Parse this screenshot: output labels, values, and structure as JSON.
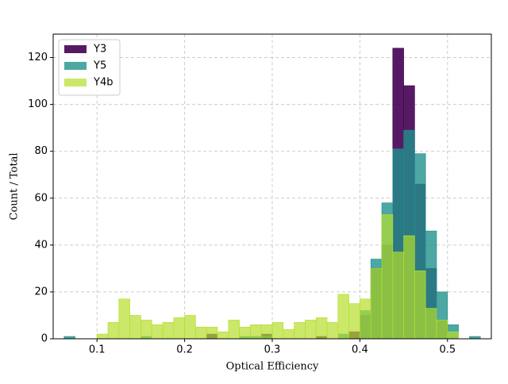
{
  "chart_data": {
    "type": "histogram",
    "xlabel": "Optical Efficiency",
    "ylabel": "Count / Total",
    "bins": [
      0.0625,
      0.075,
      0.0875,
      0.1,
      0.1125,
      0.125,
      0.1375,
      0.15,
      0.1625,
      0.175,
      0.1875,
      0.2,
      0.2125,
      0.225,
      0.2375,
      0.25,
      0.2625,
      0.275,
      0.2875,
      0.3,
      0.3125,
      0.325,
      0.3375,
      0.35,
      0.3625,
      0.375,
      0.3875,
      0.4,
      0.4125,
      0.425,
      0.4375,
      0.45,
      0.4625,
      0.475,
      0.4875,
      0.5,
      0.5125,
      0.525,
      0.5375
    ],
    "series": [
      {
        "name": "Y3",
        "color": "#440154",
        "values": [
          0,
          0,
          0,
          0,
          0,
          0,
          0,
          0,
          0,
          0,
          0,
          0,
          0,
          2,
          0,
          0,
          0,
          0,
          2,
          0,
          0,
          0,
          0,
          1,
          0,
          0,
          3,
          10,
          30,
          40,
          124,
          108,
          66,
          30,
          8,
          0,
          0,
          0
        ]
      },
      {
        "name": "Y5",
        "color": "#21918c",
        "values": [
          1,
          0,
          0,
          0,
          0,
          0,
          0,
          1,
          0,
          0,
          0,
          0,
          0,
          0,
          0,
          0,
          1,
          1,
          1,
          0,
          0,
          0,
          0,
          0,
          0,
          2,
          0,
          12,
          34,
          58,
          81,
          89,
          79,
          46,
          20,
          6,
          0,
          1
        ]
      },
      {
        "name": "Y4b",
        "color": "#b5de2b",
        "values": [
          0,
          0,
          0,
          2,
          7,
          17,
          10,
          8,
          6,
          7,
          9,
          10,
          5,
          5,
          3,
          8,
          5,
          6,
          6,
          7,
          4,
          7,
          8,
          9,
          7,
          19,
          15,
          17,
          30,
          53,
          37,
          44,
          29,
          13,
          8,
          3,
          0,
          0
        ]
      }
    ],
    "xlim": [
      0.05,
      0.55
    ],
    "ylim": [
      0,
      130
    ],
    "xticks": [
      0.1,
      0.2,
      0.3,
      0.4,
      0.5
    ],
    "yticks": [
      0,
      20,
      40,
      60,
      80,
      100,
      120
    ],
    "grid": true,
    "legend": "upper left"
  }
}
